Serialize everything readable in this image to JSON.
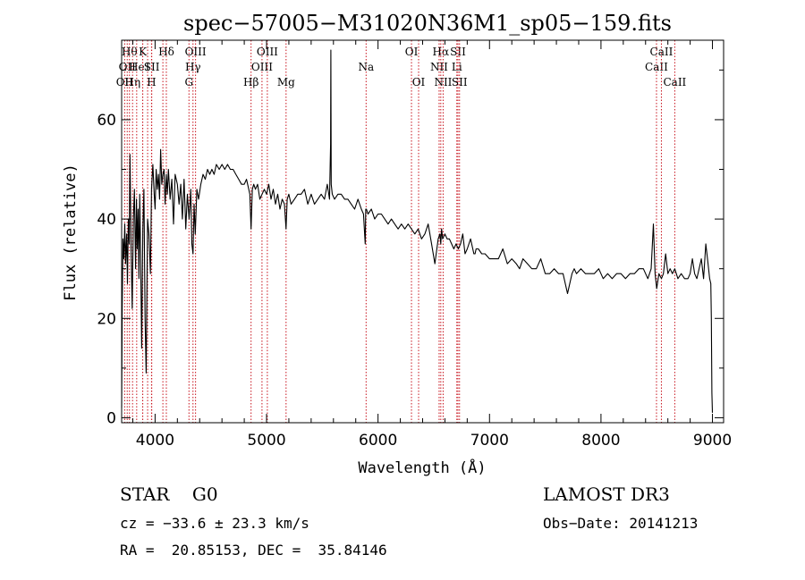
{
  "chart_data": {
    "type": "line",
    "title": "spec−57005−M31020N36M1_sp05−159.fits",
    "xlabel": "Wavelength (Å)",
    "ylabel": "Flux (relative)",
    "xlim": [
      3700,
      9100
    ],
    "ylim": [
      -1,
      76
    ],
    "x_ticks": [
      4000,
      5000,
      6000,
      7000,
      8000,
      9000
    ],
    "y_ticks": [
      0,
      20,
      40,
      60
    ],
    "series": [
      {
        "name": "spectrum",
        "x": [
          3700,
          3705,
          3712,
          3720,
          3728,
          3735,
          3745,
          3752,
          3760,
          3768,
          3775,
          3785,
          3795,
          3805,
          3815,
          3825,
          3833,
          3840,
          3848,
          3855,
          3862,
          3870,
          3880,
          3890,
          3900,
          3910,
          3920,
          3933,
          3945,
          3958,
          3968,
          3980,
          3992,
          4000,
          4010,
          4020,
          4030,
          4040,
          4050,
          4060,
          4070,
          4080,
          4090,
          4101,
          4110,
          4120,
          4135,
          4150,
          4165,
          4180,
          4200,
          4215,
          4230,
          4245,
          4260,
          4275,
          4290,
          4305,
          4320,
          4330,
          4340,
          4350,
          4360,
          4375,
          4390,
          4410,
          4430,
          4450,
          4470,
          4490,
          4510,
          4530,
          4550,
          4575,
          4600,
          4625,
          4650,
          4675,
          4700,
          4725,
          4750,
          4775,
          4800,
          4820,
          4840,
          4850,
          4861,
          4872,
          4885,
          4900,
          4920,
          4940,
          4960,
          4980,
          5000,
          5020,
          5040,
          5060,
          5080,
          5100,
          5120,
          5140,
          5160,
          5175,
          5185,
          5200,
          5220,
          5250,
          5280,
          5310,
          5340,
          5370,
          5400,
          5430,
          5460,
          5490,
          5520,
          5545,
          5565,
          5574,
          5577,
          5580,
          5590,
          5610,
          5640,
          5670,
          5700,
          5730,
          5760,
          5790,
          5820,
          5850,
          5870,
          5885,
          5890,
          5896,
          5910,
          5940,
          5970,
          6000,
          6030,
          6060,
          6090,
          6120,
          6150,
          6180,
          6210,
          6240,
          6270,
          6300,
          6330,
          6360,
          6390,
          6420,
          6450,
          6480,
          6510,
          6540,
          6555,
          6563,
          6570,
          6580,
          6600,
          6620,
          6640,
          6660,
          6680,
          6700,
          6720,
          6740,
          6760,
          6780,
          6800,
          6830,
          6860,
          6870,
          6880,
          6900,
          6930,
          6960,
          7000,
          7040,
          7080,
          7120,
          7160,
          7200,
          7240,
          7270,
          7300,
          7340,
          7380,
          7420,
          7460,
          7500,
          7540,
          7580,
          7620,
          7660,
          7700,
          7740,
          7760,
          7780,
          7820,
          7860,
          7900,
          7940,
          7980,
          8020,
          8060,
          8100,
          8140,
          8180,
          8220,
          8260,
          8300,
          8340,
          8380,
          8420,
          8450,
          8470,
          8485,
          8500,
          8520,
          8542,
          8560,
          8580,
          8600,
          8620,
          8640,
          8662,
          8690,
          8720,
          8750,
          8780,
          8800,
          8820,
          8840,
          8860,
          8880,
          8900,
          8920,
          8940,
          8960,
          8975,
          8985,
          8990,
          8995,
          9000
        ],
        "y": [
          2,
          22,
          36,
          32,
          39,
          31,
          37,
          27,
          40,
          35,
          53,
          34,
          22,
          40,
          46,
          30,
          44,
          34,
          42,
          28,
          45,
          33,
          14,
          38,
          46,
          20,
          9,
          40,
          37,
          29,
          46,
          51,
          45,
          42,
          50,
          46,
          49,
          44,
          54,
          47,
          49,
          50,
          43,
          49,
          45,
          50,
          44,
          48,
          39,
          49,
          47,
          43,
          47,
          40,
          48,
          38,
          45,
          40,
          46,
          35,
          33,
          43,
          37,
          46,
          44,
          47,
          49,
          48,
          50,
          49,
          50,
          49,
          51,
          50,
          51,
          50,
          51,
          50,
          50,
          49,
          48,
          47,
          47,
          48,
          46,
          45,
          38,
          46,
          47,
          46,
          47,
          44,
          45,
          46,
          45,
          47,
          44,
          46,
          43,
          45,
          42,
          44,
          43,
          38,
          44,
          45,
          43,
          44,
          45,
          45,
          46,
          43,
          45,
          43,
          44,
          45,
          44,
          47,
          44,
          55,
          74,
          47,
          45,
          44,
          45,
          45,
          44,
          44,
          43,
          42,
          44,
          42,
          41,
          35,
          42,
          42,
          41,
          42,
          40,
          41,
          41,
          40,
          39,
          40,
          39,
          38,
          39,
          38,
          39,
          38,
          37,
          38,
          36,
          37,
          39,
          35,
          31,
          36,
          37,
          35,
          38,
          36,
          37,
          36,
          36,
          35,
          34,
          35,
          34,
          35,
          37,
          33,
          34,
          36,
          33,
          33,
          34,
          34,
          33,
          33,
          32,
          32,
          32,
          34,
          31,
          32,
          31,
          30,
          32,
          31,
          30,
          30,
          32,
          29,
          29,
          30,
          29,
          29,
          25,
          29,
          30,
          29,
          30,
          29,
          29,
          29,
          30,
          28,
          29,
          28,
          29,
          29,
          28,
          29,
          29,
          30,
          30,
          28,
          30,
          39,
          29,
          26,
          29,
          28,
          29,
          33,
          29,
          30,
          29,
          30,
          28,
          29,
          28,
          28,
          29,
          32,
          29,
          28,
          30,
          32,
          28,
          35,
          31,
          28,
          27,
          20,
          5,
          1
        ]
      }
    ],
    "line_markers": [
      {
        "wl": 3727,
        "row": 2,
        "text": "OII"
      },
      {
        "wl": 3750,
        "row": 1,
        "text": "OII"
      },
      {
        "wl": 3770,
        "row": 0,
        "text": "Hθ"
      },
      {
        "wl": 3798,
        "row": 2,
        "text": "Hη"
      },
      {
        "wl": 3835,
        "row": 1,
        "text": "He"
      },
      {
        "wl": 3889,
        "row": 0,
        "text": "K"
      },
      {
        "wl": 3889,
        "row": 2,
        "text": ""
      },
      {
        "wl": 3933,
        "row": 1,
        "text": "I"
      },
      {
        "wl": 3968,
        "row": 2,
        "text": "H"
      },
      {
        "wl": 3970,
        "row": 1,
        "text": "SII"
      },
      {
        "wl": 4070,
        "row": 1,
        "text": ""
      },
      {
        "wl": 4101,
        "row": 0,
        "text": "Hδ"
      },
      {
        "wl": 4304,
        "row": 2,
        "text": "G"
      },
      {
        "wl": 4340,
        "row": 1,
        "text": "Hγ"
      },
      {
        "wl": 4363,
        "row": 0,
        "text": "OIII"
      },
      {
        "wl": 4861,
        "row": 2,
        "text": "Hβ"
      },
      {
        "wl": 4959,
        "row": 1,
        "text": "OIII"
      },
      {
        "wl": 5007,
        "row": 0,
        "text": "OIII"
      },
      {
        "wl": 5175,
        "row": 2,
        "text": "Mg"
      },
      {
        "wl": 5893,
        "row": 1,
        "text": "Na"
      },
      {
        "wl": 6300,
        "row": 0,
        "text": "OI"
      },
      {
        "wl": 6364,
        "row": 2,
        "text": "OI"
      },
      {
        "wl": 6548,
        "row": 1,
        "text": "NII"
      },
      {
        "wl": 6563,
        "row": 0,
        "text": "Hα"
      },
      {
        "wl": 6584,
        "row": 2,
        "text": "NII"
      },
      {
        "wl": 6707,
        "row": 1,
        "text": "Li"
      },
      {
        "wl": 6717,
        "row": 0,
        "text": "SII"
      },
      {
        "wl": 6731,
        "row": 2,
        "text": "SII"
      },
      {
        "wl": 8498,
        "row": 1,
        "text": "CaII"
      },
      {
        "wl": 8542,
        "row": 0,
        "text": "CaII"
      },
      {
        "wl": 8662,
        "row": 2,
        "text": "CaII"
      }
    ]
  },
  "info": {
    "classification": "STAR    G0",
    "survey": "LAMOST DR3",
    "cz": "cz = −33.6 ± 23.3 km/s",
    "obs_date": "Obs−Date: 20141213",
    "coords": "RA =  20.85153, DEC =  35.84146"
  }
}
